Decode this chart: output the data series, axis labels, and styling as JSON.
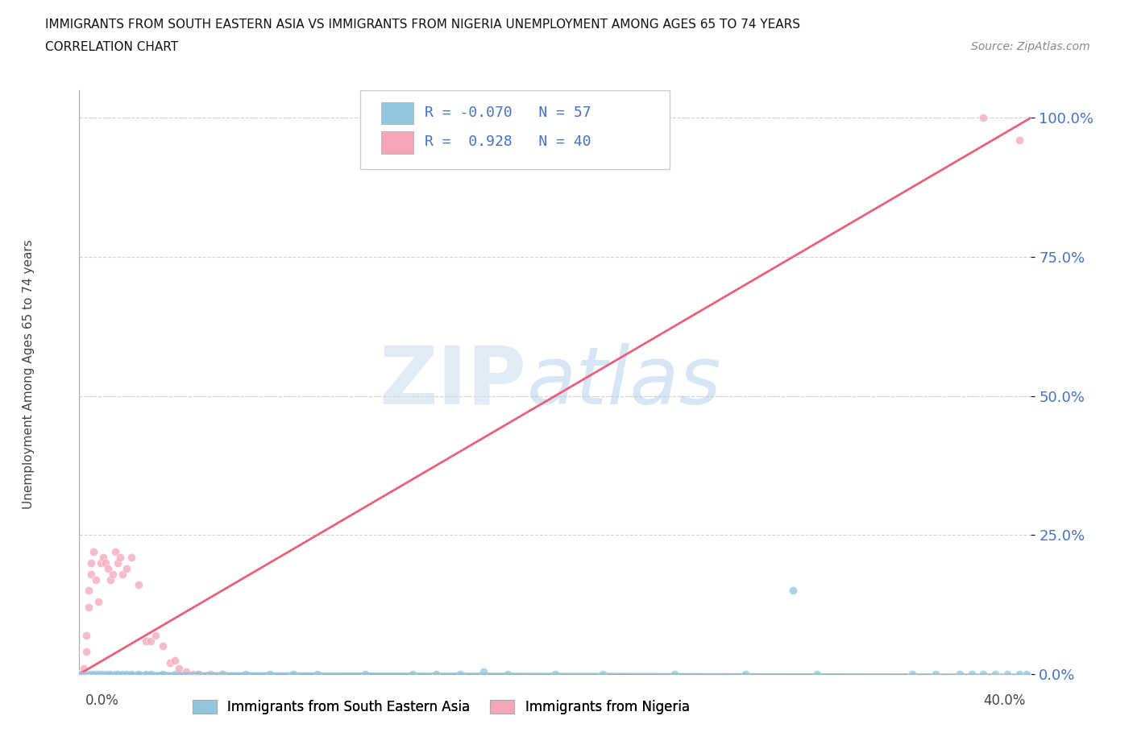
{
  "title_line1": "IMMIGRANTS FROM SOUTH EASTERN ASIA VS IMMIGRANTS FROM NIGERIA UNEMPLOYMENT AMONG AGES 65 TO 74 YEARS",
  "title_line2": "CORRELATION CHART",
  "source_text": "Source: ZipAtlas.com",
  "ylabel": "Unemployment Among Ages 65 to 74 years",
  "xlim": [
    0.0,
    0.4
  ],
  "ylim": [
    0.0,
    1.05
  ],
  "ytick_vals": [
    0.0,
    0.25,
    0.5,
    0.75,
    1.0
  ],
  "ytick_labels": [
    "0.0%",
    "25.0%",
    "50.0%",
    "75.0%",
    "100.0%"
  ],
  "watermark_text": "ZIPatlas",
  "blue_color": "#92C5DE",
  "pink_color": "#F4A6B8",
  "pink_line_color": "#E8607A",
  "blue_line_color": "#92C5DE",
  "axis_label_color": "#4472C4",
  "grid_color": "#CCCCCC",
  "background_color": "#FFFFFF",
  "blue_scatter_x": [
    0.0,
    0.001,
    0.002,
    0.002,
    0.003,
    0.003,
    0.004,
    0.004,
    0.005,
    0.005,
    0.006,
    0.006,
    0.007,
    0.008,
    0.008,
    0.009,
    0.01,
    0.011,
    0.012,
    0.013,
    0.015,
    0.016,
    0.018,
    0.02,
    0.022,
    0.025,
    0.028,
    0.03,
    0.035,
    0.04,
    0.05,
    0.06,
    0.07,
    0.08,
    0.09,
    0.1,
    0.12,
    0.14,
    0.15,
    0.16,
    0.17,
    0.18,
    0.2,
    0.22,
    0.25,
    0.28,
    0.3,
    0.31,
    0.35,
    0.36,
    0.37,
    0.375,
    0.38,
    0.385,
    0.39,
    0.395,
    0.398
  ],
  "blue_scatter_y": [
    0.0,
    0.0,
    0.0,
    0.0,
    0.0,
    0.0,
    0.0,
    0.0,
    0.0,
    0.0,
    0.0,
    0.0,
    0.0,
    0.0,
    0.0,
    0.0,
    0.0,
    0.0,
    0.0,
    0.0,
    0.0,
    0.0,
    0.0,
    0.0,
    0.0,
    0.0,
    0.0,
    0.0,
    0.0,
    0.0,
    0.0,
    0.0,
    0.0,
    0.0,
    0.0,
    0.0,
    0.0,
    0.0,
    0.0,
    0.0,
    0.005,
    0.0,
    0.0,
    0.0,
    0.0,
    0.0,
    0.15,
    0.0,
    0.0,
    0.0,
    0.0,
    0.0,
    0.0,
    0.0,
    0.0,
    0.0,
    0.0
  ],
  "pink_scatter_x": [
    0.0,
    0.001,
    0.002,
    0.002,
    0.003,
    0.003,
    0.004,
    0.004,
    0.005,
    0.005,
    0.006,
    0.007,
    0.008,
    0.009,
    0.01,
    0.011,
    0.012,
    0.013,
    0.014,
    0.015,
    0.016,
    0.017,
    0.018,
    0.02,
    0.022,
    0.025,
    0.028,
    0.03,
    0.032,
    0.035,
    0.038,
    0.04,
    0.042,
    0.045,
    0.048,
    0.05,
    0.055,
    0.06,
    0.38,
    0.395
  ],
  "pink_scatter_y": [
    0.0,
    0.0,
    0.0,
    0.01,
    0.04,
    0.07,
    0.12,
    0.15,
    0.18,
    0.2,
    0.22,
    0.17,
    0.13,
    0.2,
    0.21,
    0.2,
    0.19,
    0.17,
    0.18,
    0.22,
    0.2,
    0.21,
    0.18,
    0.19,
    0.21,
    0.16,
    0.06,
    0.06,
    0.07,
    0.05,
    0.02,
    0.025,
    0.01,
    0.005,
    0.0,
    0.0,
    0.0,
    0.0,
    1.0,
    0.96
  ],
  "pink_trend_x": [
    0.0,
    0.4
  ],
  "pink_trend_y": [
    0.0,
    1.0
  ],
  "blue_trend_x": [
    0.0,
    0.4
  ],
  "blue_trend_y": [
    0.002,
    -0.001
  ]
}
